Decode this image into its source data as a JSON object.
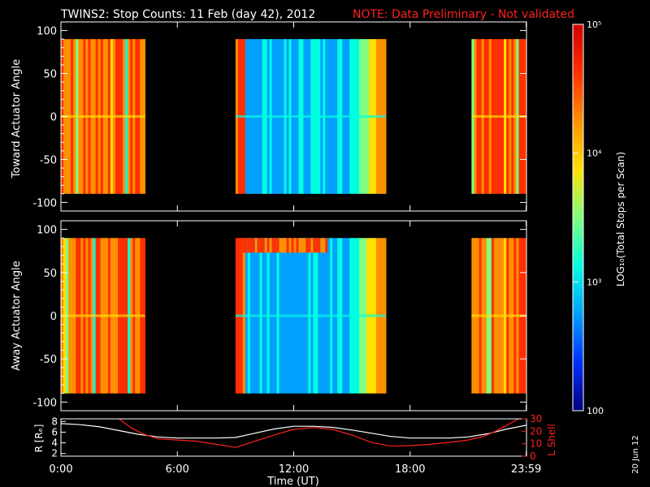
{
  "header": {
    "title": "TWINS2: Stop Counts: 11 Feb (day  42), 2012",
    "note": "NOTE: Data Preliminary - Not validated",
    "note_color": "#ff2020"
  },
  "colorbar": {
    "label": "LOG₁₀(Total Stops per Scan)",
    "ticks": [
      {
        "label": "10⁵",
        "value": 100000
      },
      {
        "label": "10⁴",
        "value": 10000
      },
      {
        "label": "10³",
        "value": 1000
      },
      {
        "label": "100",
        "value": 100
      }
    ],
    "range": [
      100,
      100000
    ],
    "scale": "log",
    "colormap": [
      "#00007f",
      "#0030ff",
      "#00a0ff",
      "#00ffe0",
      "#80ff80",
      "#ffe000",
      "#ff9000",
      "#ff3000",
      "#d00000"
    ]
  },
  "stamp": "20 Jun 12",
  "chart_data": [
    {
      "type": "heatmap",
      "ylabel": "Toward Actuator Angle",
      "ylim": [
        -110,
        110
      ],
      "yticks": [
        100,
        50,
        0,
        -50,
        -100
      ],
      "angle_range": [
        -90,
        90
      ],
      "x_range_hours": [
        0,
        24
      ],
      "data_segments": [
        {
          "start": "0:00",
          "end": "4:20",
          "level": "high (~10^4.3 to 10^4.8)"
        },
        {
          "start": "9:00",
          "end": "16:45",
          "level": "low (~10^2.4 to 10^3.5) rising at ends"
        },
        {
          "start": "21:10",
          "end": "23:59",
          "level": "high (~10^4.3 to 10^4.8)"
        }
      ]
    },
    {
      "type": "heatmap",
      "ylabel": "Away Actuator Angle",
      "ylim": [
        -110,
        110
      ],
      "yticks": [
        100,
        50,
        0,
        -50,
        -100
      ],
      "angle_range": [
        -90,
        90
      ],
      "x_range_hours": [
        0,
        24
      ],
      "data_segments": [
        {
          "start": "0:00",
          "end": "4:20",
          "level": "high (~10^4.3 to 10^4.8)"
        },
        {
          "start": "9:00",
          "end": "16:45",
          "level": "low (~10^2.4 to 10^3.5) with high band near +85"
        },
        {
          "start": "21:10",
          "end": "23:59",
          "level": "high (~10^4.3 to 10^4.8)"
        }
      ]
    },
    {
      "type": "line",
      "xlabel": "Time (UT)",
      "xticks": [
        "0:00",
        "6:00",
        "12:00",
        "18:00",
        "23:59"
      ],
      "xtick_hours": [
        0,
        6,
        12,
        18,
        23.983
      ],
      "left_axis": {
        "label": "R [Rₑ]",
        "ylim": [
          1.5,
          8.5
        ],
        "ticks": [
          2,
          4,
          6,
          8
        ]
      },
      "right_axis": {
        "label": "L Shell",
        "ylim": [
          0,
          30
        ],
        "ticks": [
          0,
          10,
          20,
          30
        ],
        "color": "#ff2020"
      },
      "series": [
        {
          "axis": "left",
          "color": "#ffffff",
          "x": [
            0,
            1,
            2,
            3,
            4,
            5,
            6,
            7,
            8,
            9,
            10,
            11,
            12,
            13,
            14,
            15,
            16,
            17,
            18,
            19,
            20,
            21,
            22,
            23,
            24
          ],
          "y": [
            7.6,
            7.4,
            7.0,
            6.3,
            5.6,
            5.1,
            4.9,
            4.9,
            4.9,
            5.0,
            5.8,
            6.6,
            7.1,
            7.1,
            6.9,
            6.4,
            5.8,
            5.2,
            4.9,
            4.9,
            4.9,
            5.1,
            5.7,
            6.6,
            7.3
          ]
        },
        {
          "axis": "right",
          "color": "#ff2020",
          "x": [
            3.0,
            3.6,
            4.2,
            5.0,
            6.0,
            7.0,
            8.0,
            9.0,
            10.0,
            11.0,
            12.0,
            13.0,
            14.0,
            15.0,
            16.0,
            17.0,
            18.0,
            19.0,
            20.0,
            21.0,
            21.8,
            22.4,
            23.0,
            23.6
          ],
          "y": [
            30,
            23,
            18,
            14,
            13,
            12,
            9.5,
            7,
            12,
            17,
            21.5,
            23,
            21.5,
            17,
            11,
            8,
            8.5,
            9.5,
            11,
            13,
            16,
            20,
            25,
            30
          ]
        }
      ]
    }
  ]
}
